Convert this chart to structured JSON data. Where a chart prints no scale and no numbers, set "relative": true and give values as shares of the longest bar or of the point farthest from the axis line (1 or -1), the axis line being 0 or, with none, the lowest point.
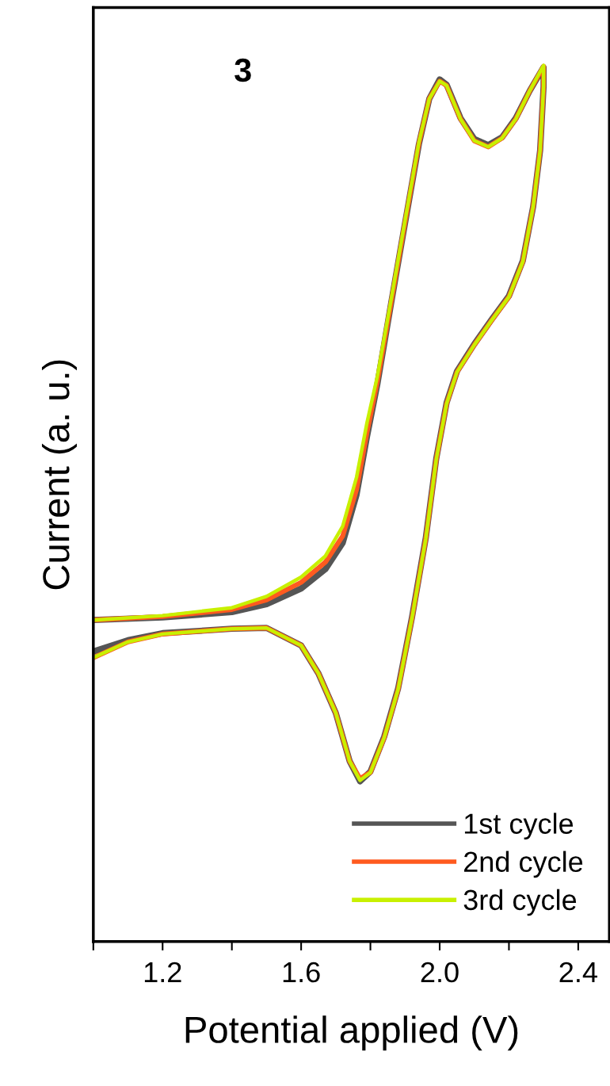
{
  "chart_data": {
    "type": "line",
    "relative": true,
    "xlabel": "Potential applied (V)",
    "ylabel": "Current (a. u.)",
    "annotations": [
      "3"
    ],
    "xlim": [
      1.0,
      2.49
    ],
    "xticks": [
      {
        "value": 1.0,
        "label": null
      },
      1.2,
      {
        "value": 1.4,
        "label": null
      },
      1.6,
      {
        "value": 1.8,
        "label": null
      },
      {
        "value": 2.0,
        "label": "2.0"
      },
      {
        "value": 2.2,
        "label": null
      },
      2.4
    ],
    "tick_labels": "x",
    "legend": "bottom right",
    "line_style": "solid",
    "marker": "none",
    "series": [
      {
        "name": "1st cycle",
        "color": "#555555",
        "x": [
          1.0,
          1.2,
          1.4,
          1.5,
          1.6,
          1.67,
          1.72,
          1.76,
          1.79,
          1.82,
          1.86,
          1.9,
          1.94,
          1.97,
          2.0,
          2.02,
          2.06,
          2.1,
          2.14,
          2.18,
          2.22,
          2.26,
          2.3,
          2.3,
          2.29,
          2.27,
          2.24,
          2.2,
          2.15,
          2.1,
          2.05,
          2.02,
          1.99,
          1.96,
          1.92,
          1.88,
          1.84,
          1.8,
          1.77,
          1.74,
          1.7,
          1.65,
          1.6,
          1.5,
          1.4,
          1.2,
          1.1,
          1.0
        ],
        "values": [
          0.367,
          0.37,
          0.376,
          0.385,
          0.403,
          0.425,
          0.455,
          0.51,
          0.576,
          0.636,
          0.729,
          0.82,
          0.91,
          0.962,
          0.984,
          0.978,
          0.94,
          0.916,
          0.909,
          0.918,
          0.94,
          0.971,
          0.998,
          0.976,
          0.903,
          0.839,
          0.777,
          0.737,
          0.71,
          0.682,
          0.651,
          0.615,
          0.551,
          0.461,
          0.37,
          0.289,
          0.234,
          0.194,
          0.183,
          0.206,
          0.261,
          0.306,
          0.338,
          0.358,
          0.357,
          0.352,
          0.344,
          0.331
        ]
      },
      {
        "name": "2nd cycle",
        "color": "#ff5a1f",
        "x": [
          1.0,
          1.2,
          1.4,
          1.5,
          1.6,
          1.67,
          1.72,
          1.76,
          1.79,
          1.82,
          1.86,
          1.9,
          1.94,
          1.97,
          2.0,
          2.02,
          2.06,
          2.1,
          2.14,
          2.18,
          2.22,
          2.26,
          2.3,
          2.3,
          2.29,
          2.27,
          2.24,
          2.2,
          2.15,
          2.1,
          2.05,
          2.02,
          1.99,
          1.96,
          1.92,
          1.88,
          1.84,
          1.8,
          1.77,
          1.74,
          1.7,
          1.65,
          1.6,
          1.5,
          1.4,
          1.2,
          1.1,
          1.0
        ],
        "values": [
          0.367,
          0.371,
          0.379,
          0.39,
          0.41,
          0.433,
          0.463,
          0.516,
          0.581,
          0.639,
          0.73,
          0.821,
          0.911,
          0.962,
          0.982,
          0.977,
          0.939,
          0.914,
          0.907,
          0.917,
          0.939,
          0.971,
          0.999,
          0.976,
          0.903,
          0.839,
          0.776,
          0.736,
          0.709,
          0.681,
          0.65,
          0.614,
          0.55,
          0.46,
          0.369,
          0.288,
          0.233,
          0.193,
          0.186,
          0.206,
          0.261,
          0.306,
          0.338,
          0.358,
          0.357,
          0.351,
          0.342,
          0.324
        ]
      },
      {
        "name": "3rd cycle",
        "color": "#c8f000",
        "x": [
          1.0,
          1.2,
          1.4,
          1.5,
          1.6,
          1.67,
          1.72,
          1.76,
          1.79,
          1.82,
          1.86,
          1.9,
          1.94,
          1.97,
          2.0,
          2.02,
          2.06,
          2.1,
          2.14,
          2.18,
          2.22,
          2.26,
          2.3,
          2.3,
          2.29,
          2.27,
          2.24,
          2.2,
          2.15,
          2.1,
          2.05,
          2.02,
          1.99,
          1.96,
          1.92,
          1.88,
          1.84,
          1.8,
          1.77,
          1.74,
          1.7,
          1.65,
          1.6,
          1.5,
          1.4,
          1.2,
          1.1,
          1.0
        ],
        "values": [
          0.367,
          0.372,
          0.381,
          0.394,
          0.416,
          0.44,
          0.474,
          0.53,
          0.592,
          0.645,
          0.733,
          0.823,
          0.912,
          0.962,
          0.982,
          0.977,
          0.939,
          0.914,
          0.907,
          0.917,
          0.939,
          0.971,
          1.0,
          0.976,
          0.903,
          0.839,
          0.776,
          0.736,
          0.709,
          0.681,
          0.65,
          0.614,
          0.55,
          0.46,
          0.369,
          0.288,
          0.233,
          0.193,
          0.184,
          0.206,
          0.261,
          0.306,
          0.338,
          0.358,
          0.357,
          0.351,
          0.342,
          0.324
        ]
      }
    ]
  }
}
